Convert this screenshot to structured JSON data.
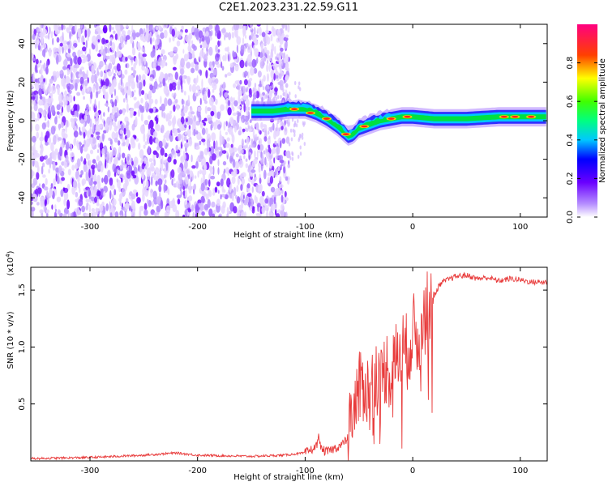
{
  "title": "C2E1.2023.231.22.59.G11",
  "colors": {
    "spectrum_noise": "#7b1cff",
    "snr_line": "#e83a3a",
    "axis": "#000000"
  },
  "chart_data": [
    {
      "type": "heatmap",
      "xlabel": "Height of straight line (km)",
      "ylabel": "Frequency (Hz)",
      "xlim": [
        -355,
        125
      ],
      "ylim": [
        -50,
        50
      ],
      "xticks": [
        -300,
        -200,
        -100,
        0,
        100
      ],
      "xtick_labels": [
        "-300",
        "-200",
        "-100",
        "0",
        "100"
      ],
      "yticks": [
        -40,
        -20,
        0,
        20,
        40
      ],
      "ytick_labels": [
        "-40",
        "-20",
        "0",
        "20",
        "40"
      ],
      "noise_region_x": [
        -355,
        -115
      ],
      "signal_trace": {
        "x": [
          -150,
          -130,
          -115,
          -100,
          -90,
          -80,
          -70,
          -60,
          -55,
          -50,
          -40,
          -30,
          -20,
          -10,
          0,
          20,
          50,
          80,
          100,
          125
        ],
        "frequency": [
          5,
          5,
          6,
          6,
          4,
          1,
          -3,
          -8,
          -7,
          -4,
          -2,
          0,
          1,
          2,
          2,
          1,
          1,
          2,
          2,
          2
        ]
      },
      "colorbar": {
        "label": "Normalized spectral amplitude",
        "range": [
          0,
          1
        ],
        "ticks": [
          0.0,
          0.2,
          0.4,
          0.6,
          0.8
        ],
        "tick_labels": [
          "0.0",
          "0.2",
          "0.4",
          "0.6",
          "0.8"
        ]
      },
      "grid": false
    },
    {
      "type": "line",
      "xlabel": "Height of straight line (km)",
      "ylabel": "SNR (10 * v/v)",
      "multiplier": "(x10",
      "multiplier_exp": "4",
      "multiplier_close": ")",
      "xlim": [
        -355,
        125
      ],
      "ylim": [
        0,
        1.7
      ],
      "xticks": [
        -300,
        -200,
        -100,
        0,
        100
      ],
      "xtick_labels": [
        "-300",
        "-200",
        "-100",
        "0",
        "100"
      ],
      "yticks": [
        0.5,
        1.0,
        1.5
      ],
      "ytick_labels": [
        "0.5",
        "1.0",
        "1.5"
      ],
      "series": [
        {
          "x": [
            -355,
            -300,
            -250,
            -220,
            -200,
            -150,
            -120,
            -100,
            -90,
            -87,
            -85,
            -80,
            -75,
            -70,
            -65,
            -60,
            -55,
            -50,
            -45,
            -40,
            -35,
            -30,
            -25,
            -20,
            -15,
            -10,
            -5,
            0,
            5,
            10,
            15,
            20,
            25,
            30,
            40,
            50,
            60,
            70,
            80,
            90,
            100,
            110,
            125
          ],
          "y": [
            0.02,
            0.03,
            0.05,
            0.07,
            0.05,
            0.04,
            0.05,
            0.07,
            0.12,
            0.22,
            0.1,
            0.08,
            0.1,
            0.12,
            0.15,
            0.2,
            0.45,
            0.6,
            0.7,
            0.55,
            0.8,
            0.65,
            0.85,
            0.75,
            0.9,
            1.0,
            0.95,
            1.15,
            1.05,
            1.25,
            1.35,
            1.45,
            1.55,
            1.58,
            1.62,
            1.63,
            1.6,
            1.61,
            1.58,
            1.6,
            1.59,
            1.57,
            1.57
          ]
        }
      ],
      "grid": false
    }
  ],
  "colorbar_stops": [
    "#ffffff",
    "#7b00ff",
    "#0000ff",
    "#00ffff",
    "#00ff00",
    "#ffff00",
    "#ff0000",
    "#ff0080"
  ]
}
